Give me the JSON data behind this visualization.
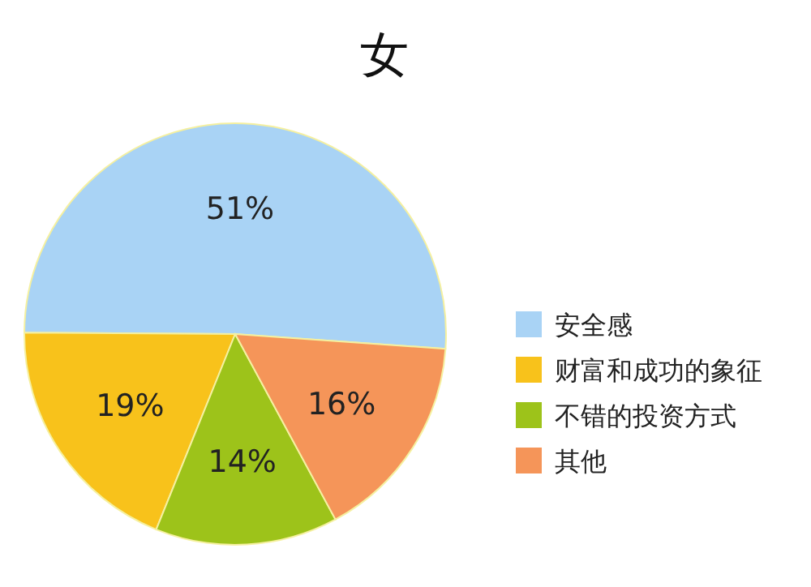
{
  "chart_data": {
    "type": "pie",
    "title": "女",
    "categories": [
      "安全感",
      "财富和成功的象征",
      "不错的投资方式",
      "其他"
    ],
    "values": [
      51,
      19,
      14,
      16
    ],
    "colors": [
      "#a9d3f5",
      "#f8c21b",
      "#9dc31a",
      "#f59559"
    ],
    "value_labels": [
      "51%",
      "19%",
      "14%",
      "16%"
    ],
    "legend": "right"
  }
}
